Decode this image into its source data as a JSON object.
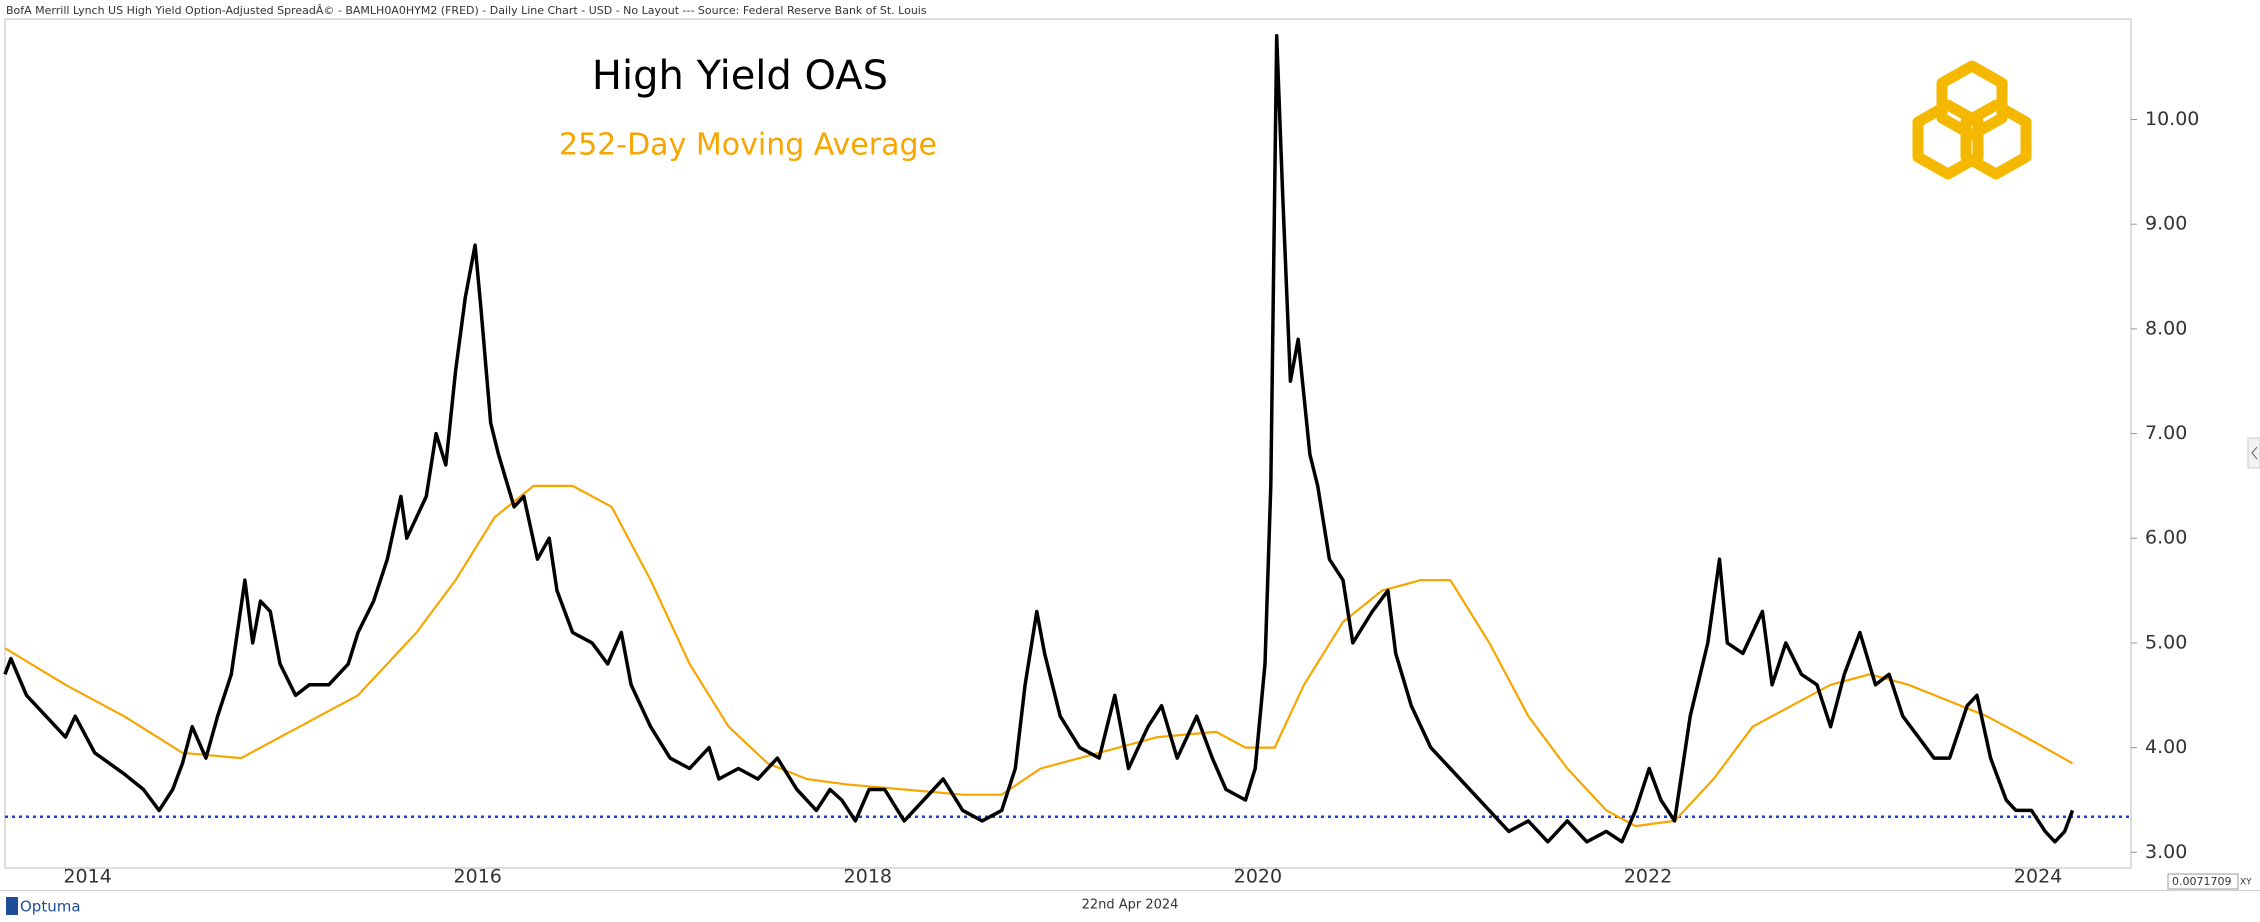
{
  "header": "BofA Merrill Lynch US High Yield Option-Adjusted SpreadÂ© - BAMLH0A0HYM2 (FRED) - Daily Line Chart - USD - No Layout --- Source: Federal Reserve Bank of St. Louis",
  "footer": {
    "brand": "Optuma",
    "date": "22nd Apr 2024",
    "readout": "0.0071709",
    "scale_button": "XY"
  },
  "chart_data": {
    "type": "line",
    "xlim": [
      2013.69,
      2024.59
    ],
    "xticks": [
      2014,
      2016,
      2018,
      2020,
      2022,
      2024
    ],
    "ylim": [
      2.85,
      10.96
    ],
    "yticks": [
      {
        "value": 3,
        "label": "3.00"
      },
      {
        "value": 4,
        "label": "4.00"
      },
      {
        "value": 5,
        "label": "5.00"
      },
      {
        "value": 6,
        "label": "6.00"
      },
      {
        "value": 7,
        "label": "7.00"
      },
      {
        "value": 8,
        "label": "8.00"
      },
      {
        "value": 9,
        "label": "9.00"
      },
      {
        "value": 10,
        "label": "10.00"
      }
    ],
    "reference_line": {
      "value": 3.34,
      "color": "#1f3fcc"
    },
    "series": [
      {
        "name": "High Yield OAS",
        "color": "#000000",
        "x": [
          2013.69,
          2013.72,
          2013.8,
          2013.9,
          2014.0,
          2014.05,
          2014.15,
          2014.3,
          2014.4,
          2014.48,
          2014.55,
          2014.6,
          2014.65,
          2014.72,
          2014.78,
          2014.85,
          2014.92,
          2014.96,
          2015.0,
          2015.05,
          2015.1,
          2015.18,
          2015.25,
          2015.35,
          2015.45,
          2015.5,
          2015.58,
          2015.65,
          2015.72,
          2015.75,
          2015.8,
          2015.85,
          2015.9,
          2015.95,
          2016.0,
          2016.05,
          2016.1,
          2016.13,
          2016.18,
          2016.22,
          2016.3,
          2016.35,
          2016.42,
          2016.48,
          2016.52,
          2016.6,
          2016.7,
          2016.78,
          2016.85,
          2016.9,
          2017.0,
          2017.1,
          2017.2,
          2017.3,
          2017.35,
          2017.45,
          2017.55,
          2017.65,
          2017.75,
          2017.85,
          2017.92,
          2017.98,
          2018.05,
          2018.12,
          2018.2,
          2018.3,
          2018.4,
          2018.5,
          2018.6,
          2018.7,
          2018.8,
          2018.87,
          2018.92,
          2018.98,
          2019.02,
          2019.1,
          2019.2,
          2019.3,
          2019.38,
          2019.45,
          2019.55,
          2019.62,
          2019.7,
          2019.8,
          2019.88,
          2019.95,
          2020.05,
          2020.1,
          2020.15,
          2020.18,
          2020.21,
          2020.24,
          2020.28,
          2020.32,
          2020.38,
          2020.42,
          2020.48,
          2020.55,
          2020.6,
          2020.7,
          2020.78,
          2020.82,
          2020.9,
          2021.0,
          2021.1,
          2021.2,
          2021.3,
          2021.4,
          2021.5,
          2021.6,
          2021.7,
          2021.8,
          2021.9,
          2021.98,
          2022.05,
          2022.12,
          2022.18,
          2022.25,
          2022.33,
          2022.42,
          2022.48,
          2022.52,
          2022.6,
          2022.7,
          2022.75,
          2022.82,
          2022.9,
          2022.98,
          2023.05,
          2023.12,
          2023.2,
          2023.28,
          2023.35,
          2023.42,
          2023.5,
          2023.58,
          2023.66,
          2023.75,
          2023.8,
          2023.87,
          2023.95,
          2024.0,
          2024.08,
          2024.15,
          2024.2,
          2024.25,
          2024.29
        ],
        "values": [
          4.7,
          4.85,
          4.5,
          4.3,
          4.1,
          4.3,
          3.95,
          3.75,
          3.6,
          3.4,
          3.6,
          3.85,
          4.2,
          3.9,
          4.3,
          4.7,
          5.6,
          5.0,
          5.4,
          5.3,
          4.8,
          4.5,
          4.6,
          4.6,
          4.8,
          5.1,
          5.4,
          5.8,
          6.4,
          6.0,
          6.2,
          6.4,
          7.0,
          6.7,
          7.6,
          8.3,
          8.8,
          8.2,
          7.1,
          6.8,
          6.3,
          6.4,
          5.8,
          6.0,
          5.5,
          5.1,
          5.0,
          4.8,
          5.1,
          4.6,
          4.2,
          3.9,
          3.8,
          4.0,
          3.7,
          3.8,
          3.7,
          3.9,
          3.6,
          3.4,
          3.6,
          3.5,
          3.3,
          3.6,
          3.6,
          3.3,
          3.5,
          3.7,
          3.4,
          3.3,
          3.4,
          3.8,
          4.6,
          5.3,
          4.9,
          4.3,
          4.0,
          3.9,
          4.5,
          3.8,
          4.2,
          4.4,
          3.9,
          4.3,
          3.9,
          3.6,
          3.5,
          3.8,
          4.8,
          6.5,
          10.8,
          9.3,
          7.5,
          7.9,
          6.8,
          6.5,
          5.8,
          5.6,
          5.0,
          5.3,
          5.5,
          4.9,
          4.4,
          4.0,
          3.8,
          3.6,
          3.4,
          3.2,
          3.3,
          3.1,
          3.3,
          3.1,
          3.2,
          3.1,
          3.4,
          3.8,
          3.5,
          3.3,
          4.3,
          5.0,
          5.8,
          5.0,
          4.9,
          5.3,
          4.6,
          5.0,
          4.7,
          4.6,
          4.2,
          4.7,
          5.1,
          4.6,
          4.7,
          4.3,
          4.1,
          3.9,
          3.9,
          4.4,
          4.5,
          3.9,
          3.5,
          3.4,
          3.4,
          3.2,
          3.1,
          3.2,
          3.4
        ]
      },
      {
        "name": "252-Day Moving Average",
        "color": "#f7a600",
        "x": [
          2013.69,
          2014.0,
          2014.3,
          2014.6,
          2014.9,
          2015.2,
          2015.5,
          2015.8,
          2016.0,
          2016.2,
          2016.4,
          2016.6,
          2016.8,
          2017.0,
          2017.2,
          2017.4,
          2017.6,
          2017.8,
          2018.0,
          2018.3,
          2018.6,
          2018.8,
          2019.0,
          2019.3,
          2019.6,
          2019.9,
          2020.05,
          2020.2,
          2020.35,
          2020.55,
          2020.75,
          2020.95,
          2021.1,
          2021.3,
          2021.5,
          2021.7,
          2021.9,
          2022.05,
          2022.25,
          2022.45,
          2022.65,
          2022.85,
          2023.05,
          2023.25,
          2023.45,
          2023.65,
          2023.85,
          2024.05,
          2024.29
        ],
        "values": [
          4.95,
          4.6,
          4.3,
          3.95,
          3.9,
          4.2,
          4.5,
          5.1,
          5.6,
          6.2,
          6.5,
          6.5,
          6.3,
          5.6,
          4.8,
          4.2,
          3.85,
          3.7,
          3.65,
          3.6,
          3.55,
          3.55,
          3.8,
          3.95,
          4.1,
          4.15,
          4.0,
          4.0,
          4.6,
          5.2,
          5.5,
          5.6,
          5.6,
          5.0,
          4.3,
          3.8,
          3.4,
          3.25,
          3.3,
          3.7,
          4.2,
          4.4,
          4.6,
          4.7,
          4.6,
          4.45,
          4.3,
          4.1,
          3.85
        ]
      }
    ]
  }
}
